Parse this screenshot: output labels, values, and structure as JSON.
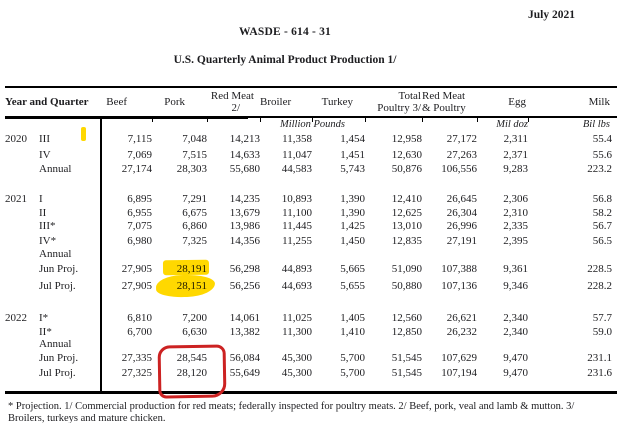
{
  "page": {
    "date": "July 2021",
    "doc_code": "WASDE - 614 - 31",
    "table_title": "U.S. Quarterly Animal Product Production  1/"
  },
  "table": {
    "row_header": "Year and Quarter",
    "columns": [
      {
        "l1": "Beef",
        "l2": ""
      },
      {
        "l1": "Pork",
        "l2": ""
      },
      {
        "l1": "Red Meat",
        "l2": "2/"
      },
      {
        "l1": "Broiler",
        "l2": ""
      },
      {
        "l1": "Turkey",
        "l2": ""
      },
      {
        "l1": "Total",
        "l2": "Poultry 3/"
      },
      {
        "l1": "Red Meat",
        "l2": "& Poultry"
      },
      {
        "l1": "Egg",
        "l2": ""
      },
      {
        "l1": "Milk",
        "l2": ""
      }
    ],
    "units": {
      "million_pounds": "Million Pounds",
      "mil_doz": "Mil doz",
      "bil_lbs": "Bil lbs"
    },
    "sections": [
      {
        "year": "2020",
        "rows": [
          {
            "label": "III",
            "values": [
              "7,115",
              "7,048",
              "14,213",
              "11,358",
              "1,454",
              "12,958",
              "27,172",
              "2,311",
              "55.4"
            ]
          },
          {
            "label": "IV",
            "values": [
              "7,069",
              "7,515",
              "14,633",
              "11,047",
              "1,451",
              "12,630",
              "27,263",
              "2,371",
              "55.6"
            ]
          },
          {
            "label": "Annual",
            "values": [
              "27,174",
              "28,303",
              "55,680",
              "44,583",
              "5,743",
              "50,876",
              "106,556",
              "9,283",
              "223.2"
            ]
          }
        ]
      },
      {
        "year": "2021",
        "rows": [
          {
            "label": "I",
            "values": [
              "6,895",
              "7,291",
              "14,235",
              "10,893",
              "1,390",
              "12,410",
              "26,645",
              "2,306",
              "56.8"
            ]
          },
          {
            "label": "II",
            "values": [
              "6,955",
              "6,675",
              "13,679",
              "11,100",
              "1,390",
              "12,625",
              "26,304",
              "2,310",
              "58.2"
            ]
          },
          {
            "label": "III*",
            "values": [
              "7,075",
              "6,860",
              "13,986",
              "11,445",
              "1,425",
              "13,010",
              "26,996",
              "2,335",
              "56.7"
            ]
          },
          {
            "label": "IV*",
            "values": [
              "6,980",
              "7,325",
              "14,356",
              "11,255",
              "1,450",
              "12,835",
              "27,191",
              "2,395",
              "56.5"
            ]
          },
          {
            "label": "Annual",
            "values": [
              "",
              "",
              "",
              "",
              "",
              "",
              "",
              "",
              ""
            ]
          },
          {
            "label": "Jun Proj.",
            "values": [
              "27,905",
              "28,191",
              "56,298",
              "44,893",
              "5,665",
              "51,090",
              "107,388",
              "9,361",
              "228.5"
            ]
          },
          {
            "label": "Jul Proj.",
            "values": [
              "27,905",
              "28,151",
              "56,256",
              "44,693",
              "5,655",
              "50,880",
              "107,136",
              "9,346",
              "228.2"
            ]
          }
        ]
      },
      {
        "year": "2022",
        "rows": [
          {
            "label": "I*",
            "values": [
              "6,810",
              "7,200",
              "14,061",
              "11,025",
              "1,405",
              "12,560",
              "26,621",
              "2,340",
              "57.7"
            ]
          },
          {
            "label": "II*",
            "values": [
              "6,700",
              "6,630",
              "13,382",
              "11,300",
              "1,410",
              "12,850",
              "26,232",
              "2,340",
              "59.0"
            ]
          },
          {
            "label": "Annual",
            "values": [
              "",
              "",
              "",
              "",
              "",
              "",
              "",
              "",
              ""
            ]
          },
          {
            "label": "Jun Proj.",
            "values": [
              "27,335",
              "28,545",
              "56,084",
              "45,300",
              "5,700",
              "51,545",
              "107,629",
              "9,470",
              "231.1"
            ]
          },
          {
            "label": "Jul Proj.",
            "values": [
              "27,325",
              "28,120",
              "55,649",
              "45,300",
              "5,700",
              "51,545",
              "107,194",
              "9,470",
              "231.6"
            ]
          }
        ]
      }
    ],
    "footnote": "* Projection. 1/ Commercial production for red meats; federally inspected for poultry meats. 2/ Beef, pork, veal and lamb & mutton. 3/ Broilers, turkeys and mature chicken."
  },
  "annotations": {
    "highlighter_color": "#ffd800",
    "pen_color": "#cc2222",
    "highlighted_values": [
      "28,191",
      "28,151"
    ],
    "pen_circled_values": [
      "28,545",
      "28,120"
    ]
  }
}
